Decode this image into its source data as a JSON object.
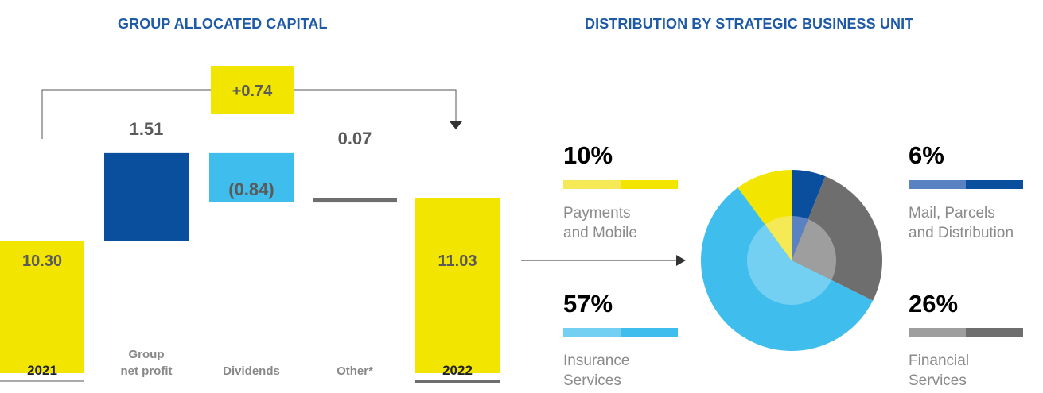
{
  "left_title": "GROUP ALLOCATED CAPITAL",
  "right_title": "DISTRIBUTION BY STRATEGIC BUSINESS UNIT",
  "chart_data": [
    {
      "type": "bar",
      "subtype": "waterfall",
      "title": "GROUP ALLOCATED CAPITAL",
      "categories": [
        "2021",
        "Group\nnet profit",
        "Dividends",
        "Other*",
        "2022"
      ],
      "values": [
        10.3,
        1.51,
        -0.84,
        0.07,
        11.03
      ],
      "value_labels": [
        "10.30",
        "1.51",
        "(0.84)",
        "0.07",
        "11.03"
      ],
      "change_label": "+0.74",
      "colors": [
        "#f2e500",
        "#0a4f9e",
        "#3fbdec",
        "#6e6e6e",
        "#f2e500"
      ]
    },
    {
      "type": "pie",
      "title": "DISTRIBUTION BY STRATEGIC BUSINESS UNIT",
      "slices": [
        {
          "label": "Mail, Parcels and Distribution",
          "pct_label": "6%",
          "value": 6,
          "color": "#0a4f9e",
          "light": "#5a82c3"
        },
        {
          "label": "Financial Services",
          "pct_label": "26%",
          "value": 26,
          "color": "#6e6e6e",
          "light": "#9e9e9e"
        },
        {
          "label": "Insurance Services",
          "pct_label": "57%",
          "value": 57,
          "color": "#3fbdec",
          "light": "#74d0f2"
        },
        {
          "label": "Payments and Mobile",
          "pct_label": "10%",
          "value": 10,
          "color": "#f2e500",
          "light": "#f5ea55"
        }
      ],
      "legend": [
        {
          "pct": "10%",
          "line1": "Payments",
          "line2": "and Mobile",
          "color": "#f2e500",
          "light": "#f5ea55"
        },
        {
          "pct": "57%",
          "line1": "Insurance",
          "line2": "Services",
          "color": "#3fbdec",
          "light": "#74d0f2"
        },
        {
          "pct": "6%",
          "line1": "Mail, Parcels",
          "line2": "and Distribution",
          "color": "#0a4f9e",
          "light": "#5a82c3"
        },
        {
          "pct": "26%",
          "line1": "Financial",
          "line2": "Services",
          "color": "#6e6e6e",
          "light": "#9e9e9e"
        }
      ]
    }
  ]
}
